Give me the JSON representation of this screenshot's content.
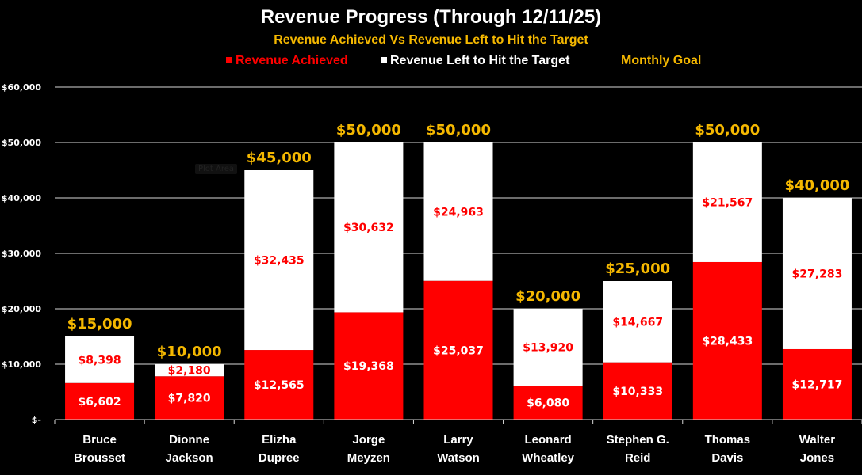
{
  "chart_data": {
    "type": "bar",
    "stacked": true,
    "title": "Revenue Progress (Through 12/11/25)",
    "subtitle": "Revenue Achieved Vs Revenue Left to Hit the Target",
    "xlabel": "",
    "ylabel": "",
    "ylim": [
      0,
      60000
    ],
    "yticks": [
      0,
      10000,
      20000,
      30000,
      40000,
      50000,
      60000
    ],
    "ytick_labels": [
      "$-",
      "$10,000",
      "$20,000",
      "$30,000",
      "$40,000",
      "$50,000",
      "$60,000"
    ],
    "grid": true,
    "legend_position": "top",
    "categories": [
      [
        "Bruce",
        "Brousset"
      ],
      [
        "Dionne",
        "Jackson"
      ],
      [
        "Elizha",
        "Dupree"
      ],
      [
        "Jorge",
        "Meyzen"
      ],
      [
        "Larry",
        "Watson"
      ],
      [
        "Leonard",
        "Wheatley"
      ],
      [
        "Stephen G.",
        "Reid"
      ],
      [
        "Thomas",
        "Davis"
      ],
      [
        "Walter",
        "Jones"
      ]
    ],
    "series": [
      {
        "name": "Revenue Achieved",
        "color": "#ff0000",
        "label_color": "#ffffff",
        "values": [
          6602,
          7820,
          12565,
          19368,
          25037,
          6080,
          10333,
          28433,
          12717
        ],
        "labels": [
          "$6,602",
          "$7,820",
          "$12,565",
          "$19,368",
          "$25,037",
          "$6,080",
          "$10,333",
          "$28,433",
          "$12,717"
        ]
      },
      {
        "name": "Revenue Left to Hit the Target",
        "color": "#ffffff",
        "label_color": "#ff0000",
        "values": [
          8398,
          2180,
          32435,
          30632,
          24963,
          13920,
          14667,
          21567,
          27283
        ],
        "labels": [
          "$8,398",
          "$2,180",
          "$32,435",
          "$30,632",
          "$24,963",
          "$13,920",
          "$14,667",
          "$21,567",
          "$27,283"
        ]
      },
      {
        "name": "Monthly Goal",
        "color": "#f5b800",
        "values": [
          15000,
          10000,
          45000,
          50000,
          50000,
          20000,
          25000,
          50000,
          40000
        ],
        "labels": [
          "$15,000",
          "$10,000",
          "$45,000",
          "$50,000",
          "$50,000",
          "$20,000",
          "$25,000",
          "$50,000",
          "$40,000"
        ]
      }
    ]
  },
  "legend": {
    "achieved": "Revenue Achieved",
    "left": "Revenue Left to Hit the Target",
    "goal": "Monthly Goal"
  },
  "tooltip": "Plot Area"
}
